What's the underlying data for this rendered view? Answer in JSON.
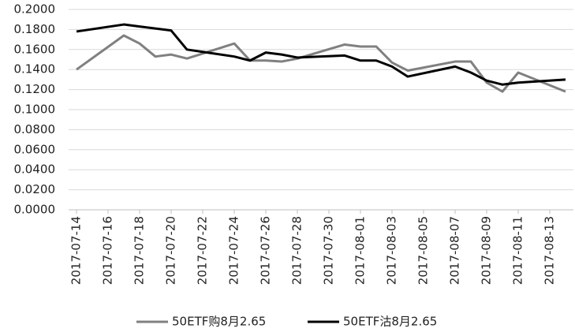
{
  "chart_data": {
    "type": "line",
    "x": [
      "2017-07-14",
      "2017-07-17",
      "2017-07-18",
      "2017-07-19",
      "2017-07-20",
      "2017-07-21",
      "2017-07-24",
      "2017-07-25",
      "2017-07-26",
      "2017-07-27",
      "2017-07-28",
      "2017-07-31",
      "2017-08-01",
      "2017-08-02",
      "2017-08-03",
      "2017-08-04",
      "2017-08-07",
      "2017-08-08",
      "2017-08-09",
      "2017-08-10",
      "2017-08-11",
      "2017-08-14"
    ],
    "series": [
      {
        "name": "50ETF购8月2.65",
        "color": "#808080",
        "values": [
          0.14,
          0.174,
          0.166,
          0.153,
          0.155,
          0.151,
          0.166,
          0.149,
          0.149,
          0.148,
          0.151,
          0.165,
          0.163,
          0.163,
          0.147,
          0.139,
          0.148,
          0.148,
          0.127,
          0.118,
          0.137,
          0.118
        ]
      },
      {
        "name": "50ETF沽8月2.65",
        "color": "#000000",
        "values": [
          0.178,
          0.185,
          0.183,
          0.181,
          0.179,
          0.16,
          0.153,
          0.149,
          0.157,
          0.155,
          0.152,
          0.154,
          0.149,
          0.149,
          0.143,
          0.133,
          0.143,
          0.137,
          0.129,
          0.125,
          0.127,
          0.13
        ]
      }
    ],
    "xlim": [
      "2017-07-14",
      "2017-08-14"
    ],
    "xticks": [
      "2017-07-14",
      "2017-07-16",
      "2017-07-18",
      "2017-07-20",
      "2017-07-22",
      "2017-07-24",
      "2017-07-26",
      "2017-07-28",
      "2017-07-30",
      "2017-08-01",
      "2017-08-03",
      "2017-08-05",
      "2017-08-07",
      "2017-08-09",
      "2017-08-11",
      "2017-08-13"
    ],
    "ylim": [
      0,
      0.2
    ],
    "yticks": [
      {
        "value": 0,
        "label": "0.0000"
      },
      {
        "value": 0.02,
        "label": "0.0200"
      },
      {
        "value": 0.04,
        "label": "0.0400"
      },
      {
        "value": 0.06,
        "label": "0.0600"
      },
      {
        "value": 0.08,
        "label": "0.0800"
      },
      {
        "value": 0.1,
        "label": "0.1000"
      },
      {
        "value": 0.12,
        "label": "0.1200"
      },
      {
        "value": 0.14,
        "label": "0.1400"
      },
      {
        "value": 0.16,
        "label": "0.1600"
      },
      {
        "value": 0.18,
        "label": "0.1800"
      },
      {
        "value": 0.2,
        "label": "0.2000"
      }
    ],
    "grid": true,
    "legend": "bottom"
  }
}
